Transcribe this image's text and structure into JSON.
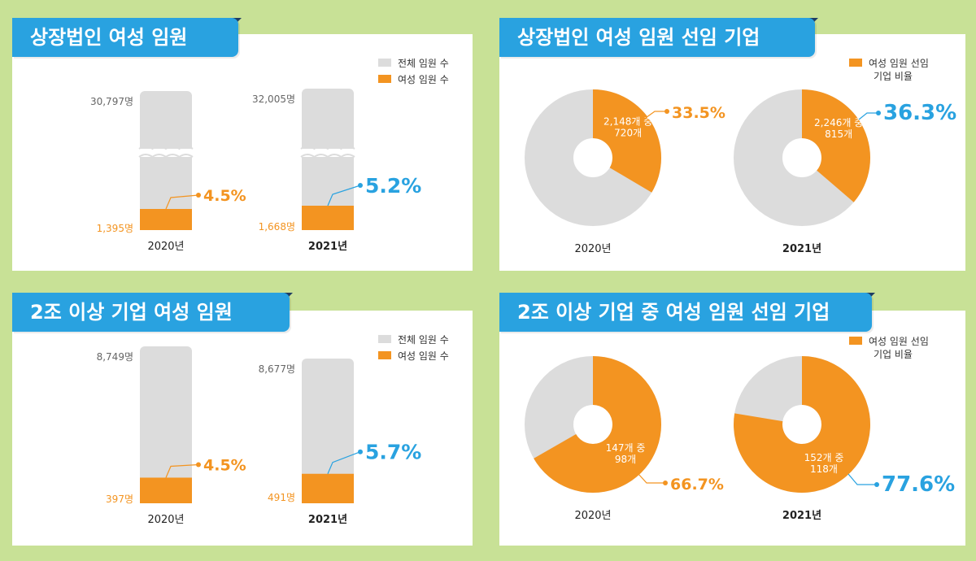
{
  "colors": {
    "background": "#c8e196",
    "accent_blue": "#29a2e0",
    "orange": "#f39421",
    "gray": "#dcdcdc",
    "dark_navy": "#1f3d62"
  },
  "legend": {
    "total": "전체 임원 수",
    "female": "여성 임원 수",
    "ratio_line1": "여성 임원 선임",
    "ratio_line2": "기업 비율"
  },
  "chart_data": [
    {
      "type": "bar",
      "title": "상장법인 여성 임원",
      "categories": [
        "2020년",
        "2021년"
      ],
      "series": [
        {
          "name": "전체 임원 수",
          "values": [
            30797,
            32005
          ],
          "labels": [
            "30,797명",
            "32,005명"
          ]
        },
        {
          "name": "여성 임원 수",
          "values": [
            1395,
            1668
          ],
          "labels": [
            "1,395명",
            "1,668명"
          ]
        }
      ],
      "percent_labels": [
        "4.5%",
        "5.2%"
      ],
      "percent_colors": [
        "#f39421",
        "#29a2e0"
      ],
      "axis_break": true
    },
    {
      "type": "pie",
      "title": "상장법인 여성 임원 선임 기업",
      "categories": [
        "2020년",
        "2021년"
      ],
      "values": [
        33.5,
        36.3
      ],
      "percent_labels": [
        "33.5%",
        "36.3%"
      ],
      "percent_colors": [
        "#f39421",
        "#29a2e0"
      ],
      "inner_line1": [
        "2,148개 중",
        "2,246개 중"
      ],
      "inner_line2": [
        "720개",
        "815개"
      ]
    },
    {
      "type": "bar",
      "title": "2조 이상 기업 여성 임원",
      "categories": [
        "2020년",
        "2021년"
      ],
      "series": [
        {
          "name": "전체 임원 수",
          "values": [
            8749,
            8677
          ],
          "labels": [
            "8,749명",
            "8,677명"
          ]
        },
        {
          "name": "여성 임원 수",
          "values": [
            397,
            491
          ],
          "labels": [
            "397명",
            "491명"
          ]
        }
      ],
      "percent_labels": [
        "4.5%",
        "5.7%"
      ],
      "percent_colors": [
        "#f39421",
        "#29a2e0"
      ]
    },
    {
      "type": "pie",
      "title": "2조 이상 기업 중 여성 임원 선임 기업",
      "categories": [
        "2020년",
        "2021년"
      ],
      "values": [
        66.7,
        77.6
      ],
      "percent_labels": [
        "66.7%",
        "77.6%"
      ],
      "percent_colors": [
        "#f39421",
        "#29a2e0"
      ],
      "inner_line1": [
        "147개 중",
        "152개 중"
      ],
      "inner_line2": [
        "98개",
        "118개"
      ]
    }
  ]
}
